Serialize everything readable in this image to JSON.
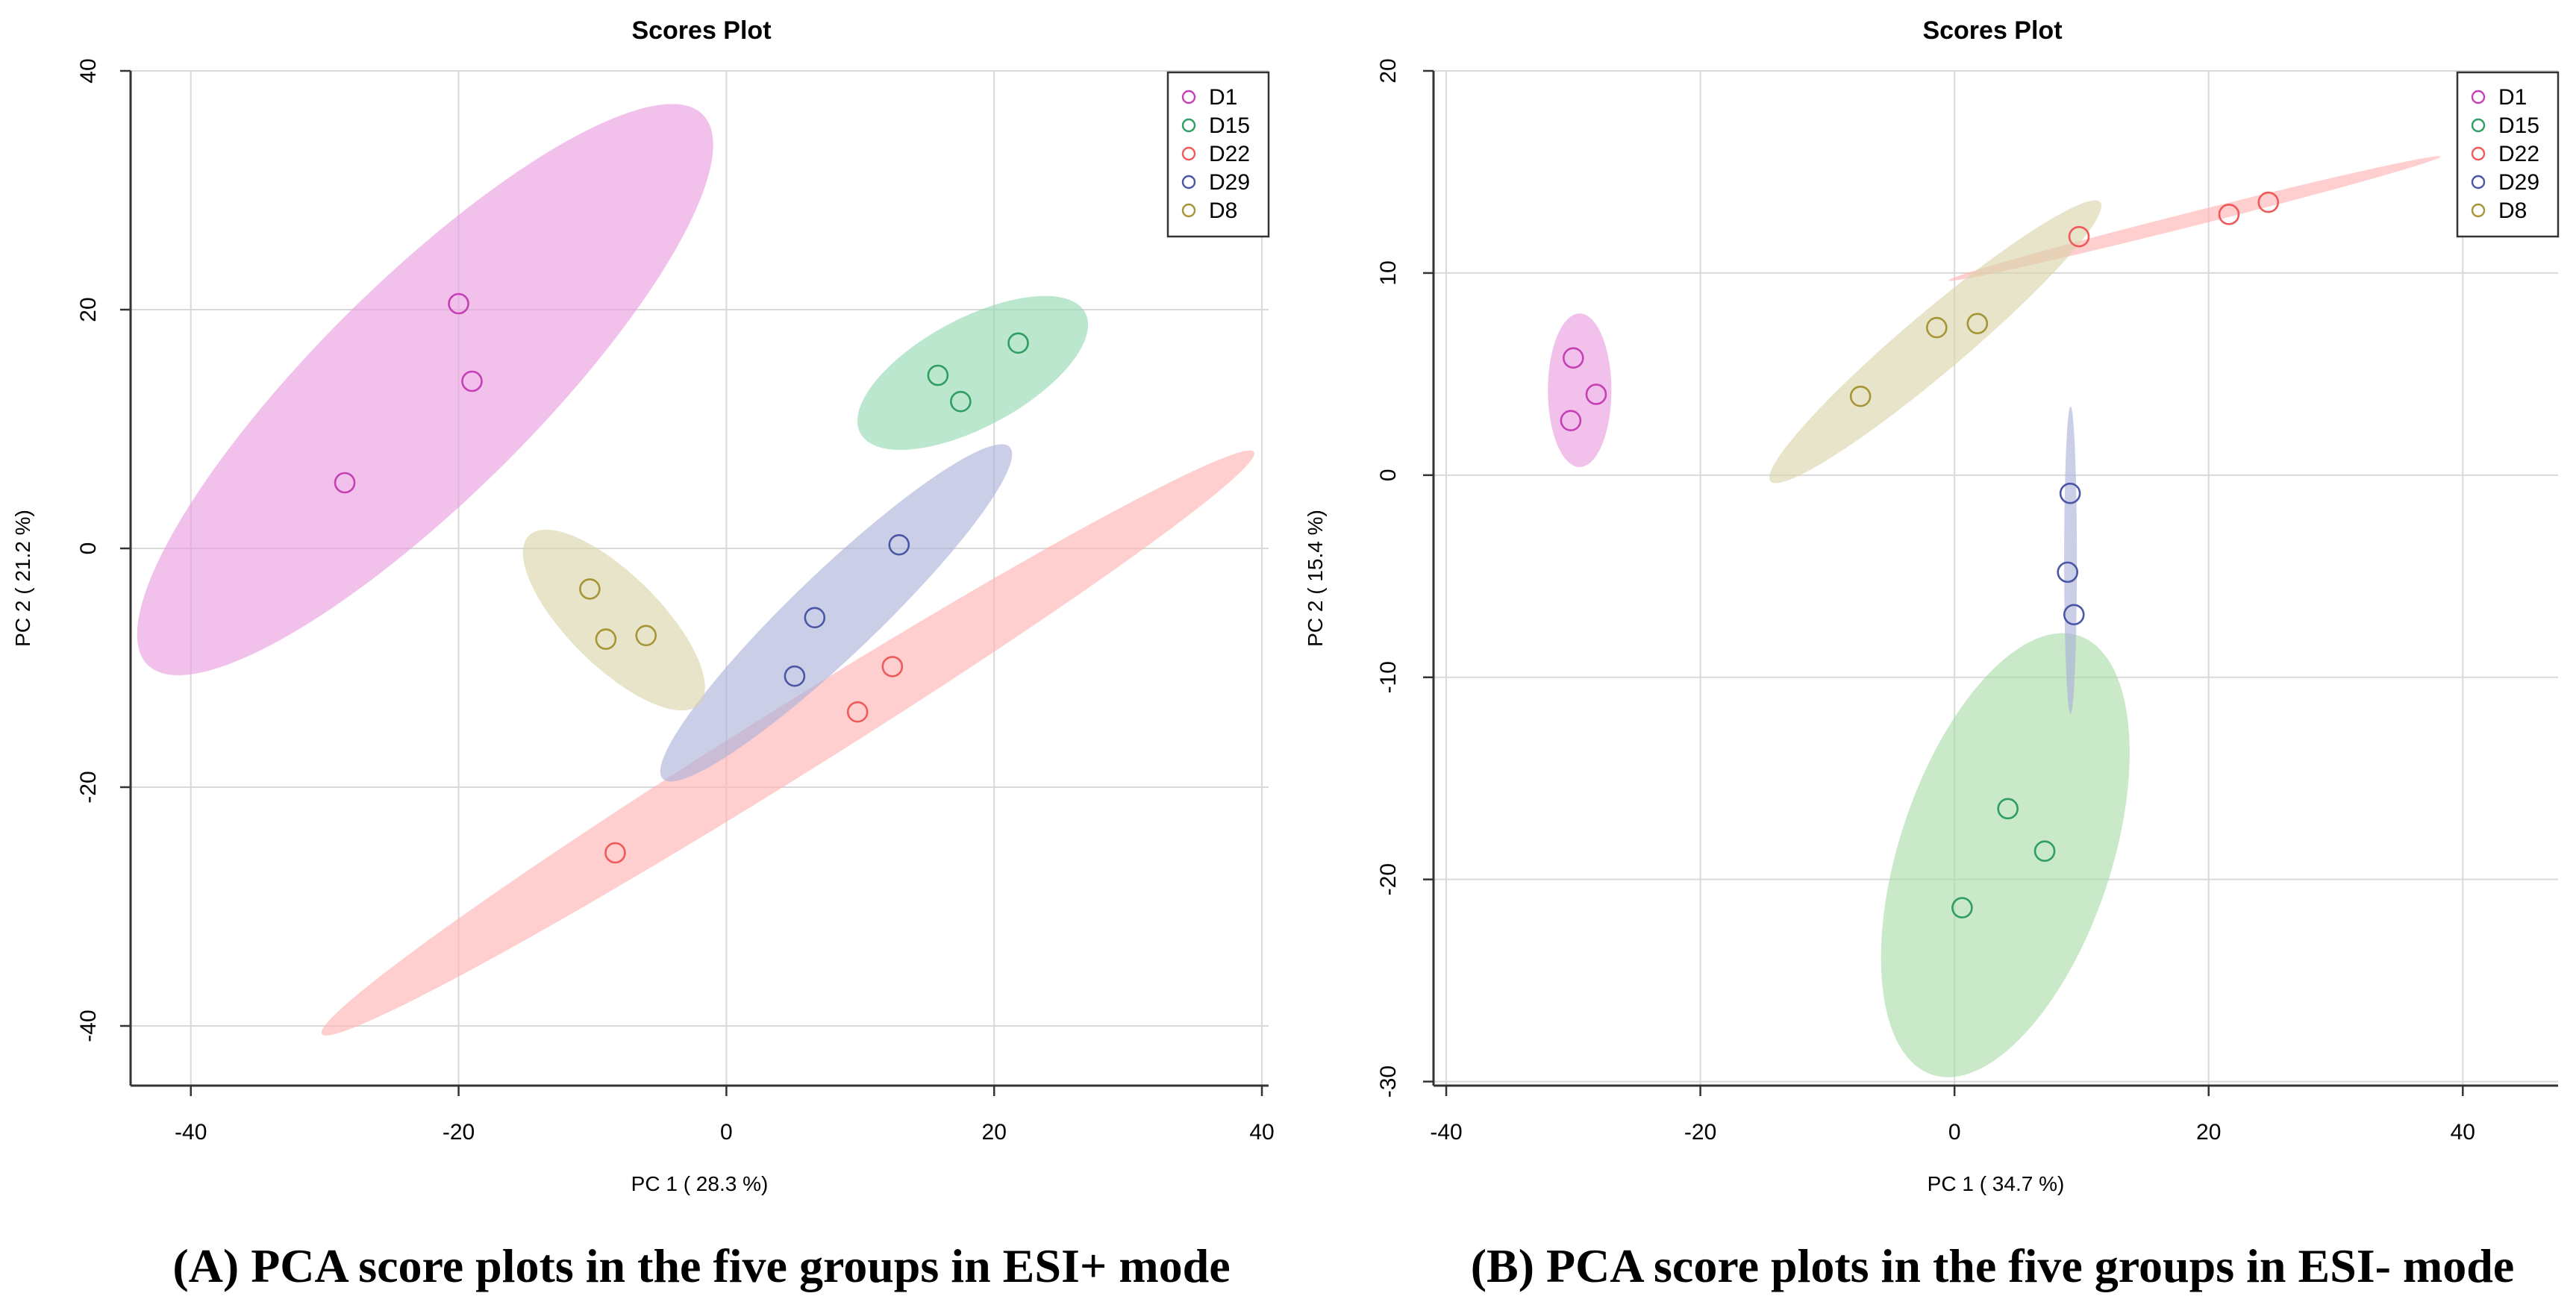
{
  "chart_data": [
    {
      "type": "scatter",
      "id": "A",
      "title": "Scores Plot",
      "xlabel": "PC 1 ( 28.3 %)",
      "ylabel": "PC 2 ( 21.2 %)",
      "xlim": [
        -44.5,
        40.5
      ],
      "ylim": [
        -45,
        40
      ],
      "xticks": [
        -40,
        -20,
        0,
        20,
        40
      ],
      "yticks": [
        -40,
        -20,
        0,
        20,
        40
      ],
      "grid": true,
      "legend_position": "top-right",
      "caption": "(A) PCA score plots in the five groups in ESI+ mode",
      "series": [
        {
          "name": "D1",
          "color": "#c540b5",
          "fill": "#e89be0",
          "points": [
            [
              -28.5,
              5.5
            ],
            [
              -20,
              20.5
            ],
            [
              -19,
              14
            ]
          ],
          "ellipse": {
            "cx": -22.5,
            "cy": 13.3,
            "rx": 31,
            "ry": 8.5,
            "angle": 48
          }
        },
        {
          "name": "D15",
          "color": "#2f9e63",
          "fill": "#8fd8b0",
          "points": [
            [
              15.8,
              14.5
            ],
            [
              17.5,
              12.3
            ],
            [
              21.8,
              17.2
            ]
          ],
          "ellipse": {
            "cx": 18.4,
            "cy": 14.7,
            "rx": 9.8,
            "ry": 4.4,
            "angle": 31
          }
        },
        {
          "name": "D22",
          "color": "#ee5a5a",
          "fill": "#ffb1b1",
          "points": [
            [
              -8.3,
              -25.5
            ],
            [
              9.8,
              -13.7
            ],
            [
              12.4,
              -9.9
            ]
          ],
          "ellipse": {
            "cx": 4.6,
            "cy": -16.3,
            "rx": 42.5,
            "ry": 2.8,
            "angle": 35
          }
        },
        {
          "name": "D29",
          "color": "#4a56a6",
          "fill": "#aab0d9",
          "points": [
            [
              5.1,
              -10.7
            ],
            [
              6.6,
              -5.8
            ],
            [
              12.9,
              0.3
            ]
          ],
          "ellipse": {
            "cx": 8.2,
            "cy": -5.4,
            "rx": 19,
            "ry": 3.3,
            "angle": 47
          }
        },
        {
          "name": "D8",
          "color": "#a69535",
          "fill": "#d9d4a8",
          "points": [
            [
              -10.2,
              -3.4
            ],
            [
              -9.0,
              -7.6
            ],
            [
              -6.0,
              -7.3
            ]
          ],
          "ellipse": {
            "cx": -8.4,
            "cy": -6.0,
            "rx": 9.5,
            "ry": 3.6,
            "angle": -48
          }
        }
      ]
    },
    {
      "type": "scatter",
      "id": "B",
      "title": "Scores Plot",
      "xlabel": "PC 1 ( 34.7 %)",
      "ylabel": "PC 2 ( 15.4 %)",
      "xlim": [
        -41,
        47.5
      ],
      "ylim": [
        -30.2,
        20
      ],
      "xticks": [
        -40,
        -20,
        0,
        20,
        40
      ],
      "yticks": [
        -30,
        -20,
        -10,
        0,
        10,
        20
      ],
      "grid": true,
      "legend_position": "top-right",
      "caption": "(B) PCA score plots in the five groups in ESI- mode",
      "series": [
        {
          "name": "D1",
          "color": "#c540b5",
          "fill": "#e89be0",
          "points": [
            [
              -30.0,
              5.8
            ],
            [
              -28.2,
              4.0
            ],
            [
              -30.2,
              2.7
            ]
          ],
          "ellipse": {
            "cx": -29.5,
            "cy": 4.2,
            "rx": 3.8,
            "ry": 2.5,
            "angle": 90
          }
        },
        {
          "name": "D15",
          "color": "#2f9e63",
          "fill": "#a8dca8",
          "points": [
            [
              4.2,
              -16.5
            ],
            [
              7.1,
              -18.6
            ],
            [
              0.6,
              -21.4
            ]
          ],
          "ellipse": {
            "cx": 4.0,
            "cy": -18.8,
            "rx": 12.3,
            "ry": 7.2,
            "angle": 62
          }
        },
        {
          "name": "D22",
          "color": "#ee5a5a",
          "fill": "#ffb1b1",
          "points": [
            [
              9.8,
              11.8
            ],
            [
              21.6,
              12.9
            ],
            [
              24.7,
              13.5
            ]
          ],
          "ellipse": {
            "cx": 18.9,
            "cy": 12.7,
            "rx": 19.6,
            "ry": 0.35,
            "angle": 9
          }
        },
        {
          "name": "D29",
          "color": "#4a56a6",
          "fill": "#aab0d9",
          "points": [
            [
              9.1,
              -0.9
            ],
            [
              8.9,
              -4.8
            ],
            [
              9.4,
              -6.9
            ]
          ],
          "ellipse": {
            "cx": 9.13,
            "cy": -4.2,
            "rx": 7.6,
            "ry": 0.5,
            "angle": 90
          }
        },
        {
          "name": "D8",
          "color": "#a69535",
          "fill": "#d9d4a8",
          "points": [
            [
              -7.4,
              3.9
            ],
            [
              -1.4,
              7.3
            ],
            [
              1.8,
              7.5
            ]
          ],
          "ellipse": {
            "cx": -1.5,
            "cy": 6.6,
            "rx": 14.7,
            "ry": 1.6,
            "angle": 28
          }
        }
      ]
    }
  ]
}
